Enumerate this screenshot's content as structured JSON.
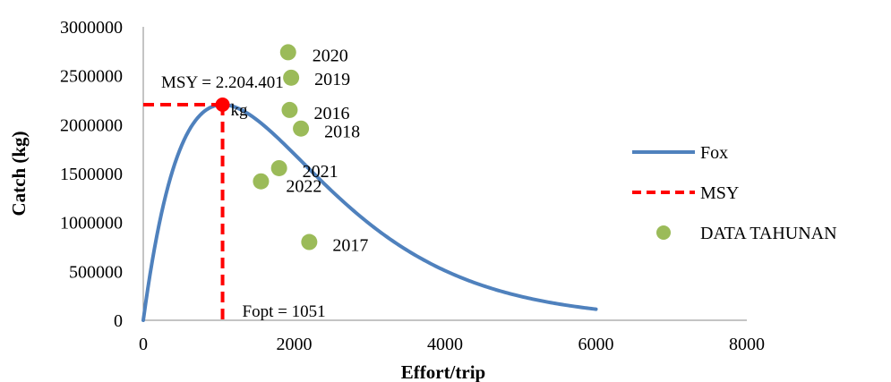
{
  "chart_data": {
    "type": "scatter",
    "xlabel": "Effort/trip",
    "ylabel": "Catch (kg)",
    "xlim": [
      0,
      8000
    ],
    "ylim": [
      0,
      3000000
    ],
    "x_ticks": [
      0,
      2000,
      4000,
      6000,
      8000
    ],
    "y_ticks": [
      0,
      500000,
      1000000,
      1500000,
      2000000,
      2500000,
      3000000
    ],
    "x_tick_labels": [
      "0",
      "2000",
      "4000",
      "6000",
      "8000"
    ],
    "y_tick_labels": [
      "0",
      "500000",
      "1000000",
      "1500000",
      "2000000",
      "2500000",
      "3000000"
    ],
    "grid": false,
    "legend_position": "right",
    "series": [
      {
        "name": "Fox",
        "type": "line",
        "color": "#4f81bd",
        "model": "fox",
        "x_range": [
          0,
          6000
        ],
        "msy": 2204401,
        "fopt": 1051
      },
      {
        "name": "MSY",
        "type": "dashed-line",
        "color": "#ff0000",
        "point": {
          "x": 1051,
          "y": 2204401
        }
      },
      {
        "name": "DATA TAHUNAN",
        "type": "scatter",
        "color": "#9bbb59",
        "points": [
          {
            "label": "2020",
            "x": 1920,
            "y": 2740000
          },
          {
            "label": "2019",
            "x": 1960,
            "y": 2480000
          },
          {
            "label": "2016",
            "x": 1940,
            "y": 2150000
          },
          {
            "label": "2018",
            "x": 2090,
            "y": 1960000
          },
          {
            "label": "2021",
            "x": 1800,
            "y": 1555000
          },
          {
            "label": "2022",
            "x": 1560,
            "y": 1420000
          },
          {
            "label": "2017",
            "x": 2200,
            "y": 800000
          }
        ]
      }
    ],
    "annotations": {
      "msy_line1": "MSY = 2.204.401",
      "msy_line2": "kg",
      "fopt": "Fopt = 1051"
    }
  }
}
